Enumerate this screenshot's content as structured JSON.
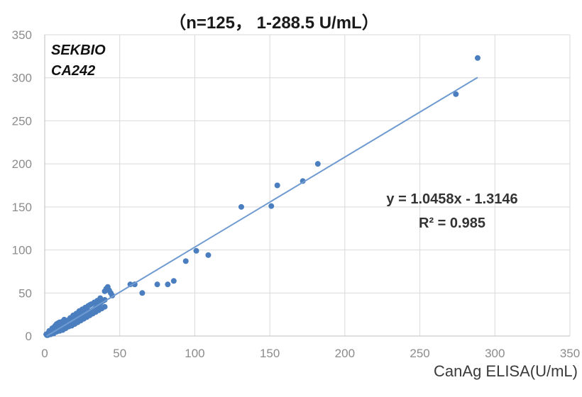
{
  "chart_data": {
    "type": "scatter",
    "title": "（n=125， 1-288.5 U/mL）",
    "xlabel": "CanAg ELISA(U/mL)",
    "ylabel": "",
    "brand_line1": "SEKBIO",
    "brand_line2": "CA242",
    "xlim": [
      0,
      350
    ],
    "ylim": [
      0,
      350
    ],
    "x_ticks": [
      0,
      50,
      100,
      150,
      200,
      250,
      300,
      350
    ],
    "y_ticks": [
      0,
      50,
      100,
      150,
      200,
      250,
      300,
      350
    ],
    "grid": true,
    "point_color": "#4a7ebf",
    "line_color": "#6f9bd1",
    "trendline": {
      "slope": 1.0458,
      "intercept": -1.3146,
      "x_range": [
        0,
        288.5
      ],
      "equation": "y = 1.0458x - 1.3146",
      "r_squared": "R² = 0.985"
    },
    "points": [
      [
        1,
        2
      ],
      [
        1.5,
        1
      ],
      [
        2,
        3
      ],
      [
        2.5,
        2
      ],
      [
        3,
        4
      ],
      [
        3.5,
        3
      ],
      [
        4,
        5
      ],
      [
        4.5,
        4
      ],
      [
        5,
        6
      ],
      [
        5.5,
        5
      ],
      [
        6,
        7
      ],
      [
        6.5,
        5
      ],
      [
        7,
        8
      ],
      [
        7.5,
        6
      ],
      [
        8,
        9
      ],
      [
        8.5,
        7
      ],
      [
        9,
        10
      ],
      [
        9.5,
        8
      ],
      [
        10,
        11
      ],
      [
        10.5,
        9
      ],
      [
        11,
        12
      ],
      [
        11.5,
        10
      ],
      [
        12,
        13
      ],
      [
        12.5,
        11
      ],
      [
        13,
        14
      ],
      [
        13.5,
        12
      ],
      [
        14,
        15
      ],
      [
        14.5,
        13
      ],
      [
        15,
        16
      ],
      [
        16,
        14
      ],
      [
        17,
        17
      ],
      [
        18,
        15
      ],
      [
        19,
        18
      ],
      [
        20,
        17
      ],
      [
        21,
        19
      ],
      [
        22,
        20
      ],
      [
        23,
        21
      ],
      [
        24,
        22
      ],
      [
        25,
        23
      ],
      [
        26,
        24
      ],
      [
        27,
        25
      ],
      [
        28,
        26
      ],
      [
        29,
        27
      ],
      [
        30,
        28
      ],
      [
        31,
        29
      ],
      [
        32,
        30
      ],
      [
        33,
        31
      ],
      [
        34,
        33
      ],
      [
        35,
        35
      ],
      [
        36,
        37
      ],
      [
        37,
        38
      ],
      [
        38,
        40
      ],
      [
        39,
        41
      ],
      [
        40,
        42
      ],
      [
        3,
        6
      ],
      [
        6,
        10
      ],
      [
        8,
        14
      ],
      [
        10,
        16
      ],
      [
        12,
        17
      ],
      [
        15,
        18
      ],
      [
        18,
        20
      ],
      [
        20,
        22
      ],
      [
        22,
        25
      ],
      [
        24,
        27
      ],
      [
        26,
        30
      ],
      [
        28,
        32
      ],
      [
        30,
        36
      ],
      [
        2,
        1
      ],
      [
        4,
        2
      ],
      [
        6,
        3
      ],
      [
        8,
        5
      ],
      [
        10,
        6
      ],
      [
        12,
        7
      ],
      [
        14,
        9
      ],
      [
        16,
        11
      ],
      [
        18,
        12
      ],
      [
        20,
        14
      ],
      [
        22,
        16
      ],
      [
        24,
        18
      ],
      [
        26,
        20
      ],
      [
        28,
        22
      ],
      [
        30,
        24
      ],
      [
        32,
        26
      ],
      [
        34,
        28
      ],
      [
        36,
        30
      ],
      [
        38,
        32
      ],
      [
        40,
        34
      ],
      [
        7,
        12
      ],
      [
        9,
        15
      ],
      [
        11,
        16
      ],
      [
        13,
        19
      ],
      [
        19,
        24
      ],
      [
        21,
        26
      ],
      [
        23,
        29
      ],
      [
        25,
        31
      ],
      [
        27,
        33
      ],
      [
        29,
        35
      ],
      [
        31,
        37
      ],
      [
        33,
        39
      ],
      [
        35,
        41
      ],
      [
        41,
        55
      ],
      [
        42,
        57
      ],
      [
        40,
        52
      ],
      [
        43,
        53
      ],
      [
        45,
        47
      ],
      [
        57,
        60
      ],
      [
        60,
        60
      ],
      [
        65,
        50
      ],
      [
        75,
        60
      ],
      [
        82,
        60
      ],
      [
        86,
        64
      ],
      [
        94,
        87
      ],
      [
        101,
        99
      ],
      [
        109,
        94
      ],
      [
        131,
        150
      ],
      [
        151,
        151
      ],
      [
        155,
        175
      ],
      [
        172,
        180
      ],
      [
        182,
        200
      ],
      [
        274,
        281
      ],
      [
        288.5,
        323
      ],
      [
        5,
        9
      ],
      [
        17,
        21
      ],
      [
        37,
        44
      ],
      [
        44,
        50
      ]
    ]
  }
}
